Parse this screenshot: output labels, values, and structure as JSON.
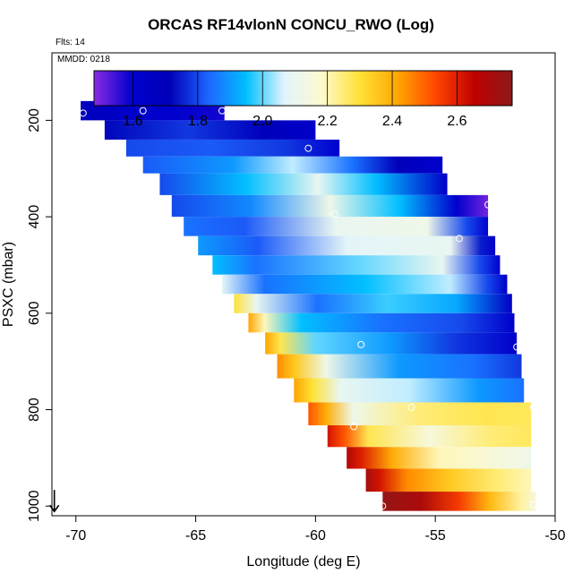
{
  "header": {
    "title": "ORCAS RF14vlonN CONCU_RWO (Log)",
    "flights_note": "Flts: 14",
    "date_note": "MMDD: 0218"
  },
  "chart_data": {
    "type": "heatmap",
    "title": "ORCAS RF14vlonN CONCU_RWO (Log)",
    "xlabel": "Longitude (deg E)",
    "ylabel": "PSXC (mbar)",
    "xlim": [
      -71,
      -50
    ],
    "ylim": [
      1020,
      60
    ],
    "y_inverted": true,
    "x_ticks": [
      -70,
      -65,
      -60,
      -55,
      -50
    ],
    "y_ticks": [
      200,
      400,
      600,
      800,
      1000
    ],
    "colorbar": {
      "range": [
        1.48,
        2.77
      ],
      "ticks": [
        1.6,
        1.8,
        2.0,
        2.2,
        2.4,
        2.6
      ],
      "tick_labels": [
        "1.6",
        "1.8",
        "2.0",
        "2.2",
        "2.4",
        "2.6"
      ],
      "placement": "top-inside",
      "colors": [
        "#8a2be2",
        "#0000cd",
        "#0000b8",
        "#1e64ff",
        "#00bfff",
        "#e0f4ff",
        "#fffacd",
        "#ffe135",
        "#ffa500",
        "#ff4500",
        "#c00000",
        "#8b1a1a"
      ]
    },
    "grid": false,
    "rows": [
      {
        "p": 180,
        "x0": -69.8,
        "x1": -63.8,
        "stops": [
          [
            0,
            1.7
          ],
          [
            0.15,
            1.66
          ],
          [
            0.35,
            1.62
          ],
          [
            0.65,
            1.6
          ],
          [
            1,
            1.58
          ]
        ]
      },
      {
        "p": 220,
        "x0": -68.8,
        "x1": -60.0,
        "stops": [
          [
            0,
            1.72
          ],
          [
            0.4,
            1.78
          ],
          [
            0.75,
            1.7
          ],
          [
            1,
            1.62
          ]
        ]
      },
      {
        "p": 260,
        "x0": -67.9,
        "x1": -59.0,
        "stops": [
          [
            0,
            1.8
          ],
          [
            0.4,
            1.82
          ],
          [
            0.75,
            1.78
          ],
          [
            1,
            1.6
          ]
        ]
      },
      {
        "p": 290,
        "x0": -67.2,
        "x1": -54.7,
        "stops": [
          [
            0,
            1.82
          ],
          [
            0.3,
            1.9
          ],
          [
            0.5,
            2.05
          ],
          [
            0.7,
            1.85
          ],
          [
            0.85,
            1.7
          ],
          [
            1,
            1.6
          ]
        ]
      },
      {
        "p": 330,
        "x0": -66.5,
        "x1": -54.5,
        "stops": [
          [
            0,
            1.8
          ],
          [
            0.3,
            1.95
          ],
          [
            0.55,
            2.1
          ],
          [
            0.75,
            1.95
          ],
          [
            1,
            1.62
          ]
        ]
      },
      {
        "p": 380,
        "x0": -66.0,
        "x1": -52.8,
        "stops": [
          [
            0,
            1.8
          ],
          [
            0.25,
            1.88
          ],
          [
            0.5,
            2.12
          ],
          [
            0.72,
            1.95
          ],
          [
            0.9,
            1.6
          ],
          [
            1,
            1.5
          ]
        ]
      },
      {
        "p": 420,
        "x0": -65.5,
        "x1": -52.8,
        "stops": [
          [
            0,
            1.85
          ],
          [
            0.2,
            1.82
          ],
          [
            0.5,
            2.1
          ],
          [
            0.8,
            2.12
          ],
          [
            0.93,
            1.8
          ],
          [
            1,
            1.6
          ]
        ]
      },
      {
        "p": 460,
        "x0": -64.9,
        "x1": -52.5,
        "stops": [
          [
            0,
            1.9
          ],
          [
            0.2,
            1.82
          ],
          [
            0.5,
            2.08
          ],
          [
            0.85,
            2.1
          ],
          [
            0.95,
            1.75
          ],
          [
            1,
            1.62
          ]
        ]
      },
      {
        "p": 500,
        "x0": -64.3,
        "x1": -52.3,
        "stops": [
          [
            0,
            1.95
          ],
          [
            0.15,
            1.85
          ],
          [
            0.5,
            2.0
          ],
          [
            0.8,
            2.1
          ],
          [
            0.93,
            1.8
          ],
          [
            1,
            1.6
          ]
        ]
      },
      {
        "p": 540,
        "x0": -63.9,
        "x1": -52.0,
        "stops": [
          [
            0,
            2.08
          ],
          [
            0.15,
            1.85
          ],
          [
            0.5,
            1.95
          ],
          [
            0.8,
            2.05
          ],
          [
            0.93,
            1.8
          ],
          [
            1,
            1.62
          ]
        ]
      },
      {
        "p": 580,
        "x0": -63.4,
        "x1": -51.8,
        "stops": [
          [
            0,
            2.3
          ],
          [
            0.08,
            2.1
          ],
          [
            0.3,
            1.85
          ],
          [
            0.55,
            1.98
          ],
          [
            0.8,
            1.92
          ],
          [
            1,
            1.65
          ]
        ]
      },
      {
        "p": 620,
        "x0": -62.8,
        "x1": -51.7,
        "stops": [
          [
            0,
            2.42
          ],
          [
            0.06,
            2.2
          ],
          [
            0.2,
            1.95
          ],
          [
            0.5,
            1.85
          ],
          [
            0.8,
            1.8
          ],
          [
            1,
            1.62
          ]
        ]
      },
      {
        "p": 660,
        "x0": -62.1,
        "x1": -51.6,
        "stops": [
          [
            0,
            2.42
          ],
          [
            0.06,
            2.28
          ],
          [
            0.2,
            2.0
          ],
          [
            0.5,
            1.9
          ],
          [
            0.75,
            1.78
          ],
          [
            1,
            1.62
          ]
        ]
      },
      {
        "p": 710,
        "x0": -61.6,
        "x1": -51.4,
        "stops": [
          [
            0,
            2.45
          ],
          [
            0.07,
            2.35
          ],
          [
            0.2,
            2.12
          ],
          [
            0.5,
            1.9
          ],
          [
            0.8,
            1.85
          ],
          [
            1,
            1.78
          ]
        ]
      },
      {
        "p": 760,
        "x0": -60.9,
        "x1": -51.3,
        "stops": [
          [
            0,
            2.42
          ],
          [
            0.08,
            2.3
          ],
          [
            0.2,
            2.1
          ],
          [
            0.5,
            2.05
          ],
          [
            0.8,
            1.9
          ],
          [
            1,
            1.85
          ]
        ]
      },
      {
        "p": 810,
        "x0": -60.3,
        "x1": -51.0,
        "stops": [
          [
            0,
            2.52
          ],
          [
            0.08,
            2.4
          ],
          [
            0.2,
            2.12
          ],
          [
            0.5,
            2.25
          ],
          [
            0.8,
            2.28
          ],
          [
            1,
            2.27
          ]
        ]
      },
      {
        "p": 855,
        "x0": -59.5,
        "x1": -51.0,
        "stops": [
          [
            0,
            2.62
          ],
          [
            0.08,
            2.52
          ],
          [
            0.2,
            2.28
          ],
          [
            0.5,
            2.15
          ],
          [
            0.8,
            2.25
          ],
          [
            1,
            2.27
          ]
        ]
      },
      {
        "p": 900,
        "x0": -58.7,
        "x1": -51.0,
        "stops": [
          [
            0,
            2.68
          ],
          [
            0.08,
            2.6
          ],
          [
            0.25,
            2.4
          ],
          [
            0.5,
            2.2
          ],
          [
            0.8,
            2.15
          ],
          [
            1,
            2.12
          ]
        ]
      },
      {
        "p": 945,
        "x0": -57.9,
        "x1": -51.0,
        "stops": [
          [
            0,
            2.72
          ],
          [
            0.08,
            2.62
          ],
          [
            0.25,
            2.45
          ],
          [
            0.5,
            2.35
          ],
          [
            0.8,
            2.25
          ],
          [
            1,
            2.2
          ]
        ]
      },
      {
        "p": 995,
        "x0": -57.2,
        "x1": -50.8,
        "stops": [
          [
            0,
            2.75
          ],
          [
            0.25,
            2.7
          ],
          [
            0.5,
            2.55
          ],
          [
            0.7,
            2.38
          ],
          [
            0.9,
            2.22
          ],
          [
            1,
            2.15
          ]
        ]
      }
    ],
    "markers": [
      {
        "x": -69.7,
        "y": 185
      },
      {
        "x": -67.2,
        "y": 180
      },
      {
        "x": -63.9,
        "y": 180
      },
      {
        "x": -60.3,
        "y": 258
      },
      {
        "x": -59.2,
        "y": 395
      },
      {
        "x": -52.8,
        "y": 375
      },
      {
        "x": -54.0,
        "y": 445
      },
      {
        "x": -58.1,
        "y": 665
      },
      {
        "x": -51.6,
        "y": 670
      },
      {
        "x": -56.0,
        "y": 795
      },
      {
        "x": -50.9,
        "y": 795
      },
      {
        "x": -58.4,
        "y": 835
      },
      {
        "x": -57.2,
        "y": 1000
      },
      {
        "x": -50.9,
        "y": 997
      }
    ],
    "arrow": {
      "x": -70.9,
      "y": 1000,
      "direction": "down"
    }
  }
}
